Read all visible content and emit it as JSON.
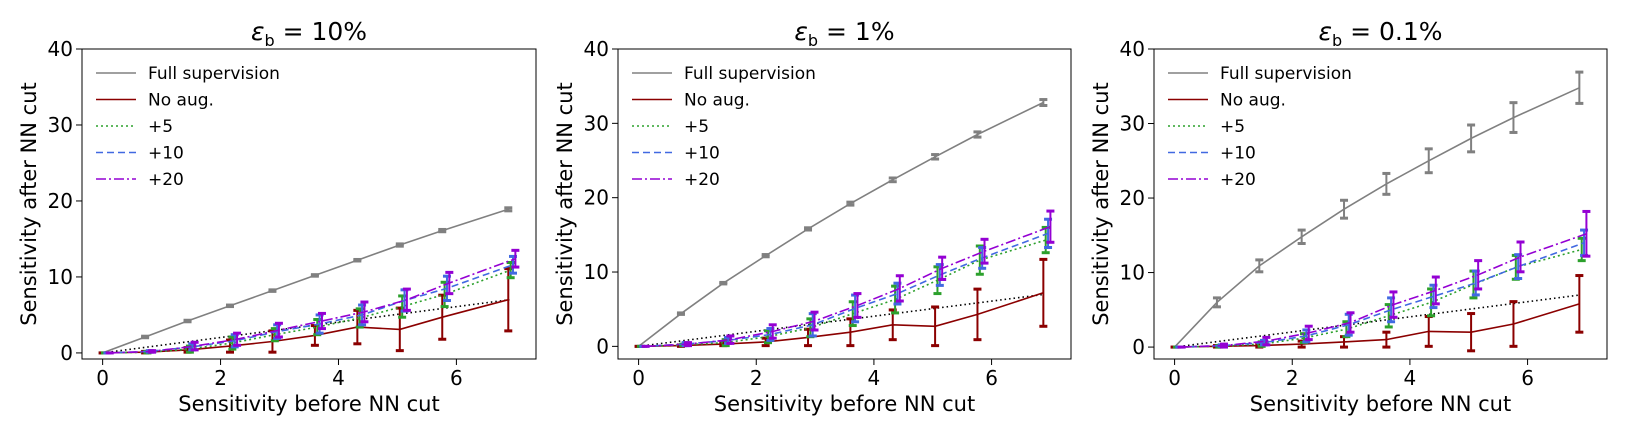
{
  "chart_data": [
    {
      "type": "line",
      "title": "ε_b = 10%",
      "title_symbol": "ε",
      "title_subscript": "b",
      "title_value": "10%",
      "xlabel": "Sensitivity before NN cut",
      "ylabel": "Sensitivity after NN cut",
      "xlim": [
        -0.35,
        7.35
      ],
      "ylim": [
        -0.8,
        40
      ],
      "xticks": [
        0,
        2,
        4,
        6
      ],
      "yticks": [
        0,
        10,
        20,
        30,
        40
      ],
      "legend_position": "top-left",
      "reference_line": {
        "x": [
          0,
          6.9
        ],
        "y": [
          0,
          7.0
        ]
      },
      "series": [
        {
          "name": "Full supervision",
          "color": "#808080",
          "dash": "",
          "x": [
            0,
            0.72,
            1.44,
            2.16,
            2.88,
            3.6,
            4.32,
            5.04,
            5.76,
            6.88
          ],
          "y": [
            0,
            2.1,
            4.2,
            6.2,
            8.2,
            10.2,
            12.2,
            14.2,
            16.1,
            18.9
          ],
          "err": [
            0,
            0.1,
            0.1,
            0.1,
            0.1,
            0.1,
            0.1,
            0.15,
            0.15,
            0.2
          ]
        },
        {
          "name": "No aug.",
          "color": "#8b0000",
          "dash": "",
          "x": [
            0,
            0.72,
            1.44,
            2.16,
            2.88,
            3.6,
            4.32,
            5.04,
            5.76,
            6.88
          ],
          "y": [
            0,
            0.1,
            0.4,
            0.9,
            1.5,
            2.3,
            3.4,
            3.1,
            4.7,
            7.0
          ],
          "err": [
            0,
            0.1,
            0.3,
            0.8,
            1.4,
            1.3,
            2.2,
            2.8,
            2.9,
            4.1
          ]
        },
        {
          "name": "+5",
          "color": "#2ca02c",
          "dash": "2,3",
          "x": [
            0.04,
            0.76,
            1.48,
            2.2,
            2.92,
            3.64,
            4.36,
            5.08,
            5.8,
            6.92
          ],
          "y": [
            0,
            0.1,
            0.5,
            1.3,
            2.4,
            3.4,
            4.6,
            6.1,
            7.7,
            10.9
          ],
          "err": [
            0,
            0.1,
            0.4,
            0.8,
            0.8,
            1.0,
            1.2,
            1.4,
            1.6,
            1.0
          ]
        },
        {
          "name": "+10",
          "color": "#4169e1",
          "dash": "7,4",
          "x": [
            0.08,
            0.8,
            1.52,
            2.24,
            2.96,
            3.68,
            4.4,
            5.12,
            5.84,
            6.96
          ],
          "y": [
            0,
            0.2,
            0.8,
            1.6,
            2.8,
            3.8,
            5.0,
            6.9,
            8.5,
            11.6
          ],
          "err": [
            0,
            0.1,
            0.4,
            0.8,
            0.9,
            1.2,
            1.3,
            1.4,
            1.6,
            1.1
          ]
        },
        {
          "name": "+20",
          "color": "#9400d3",
          "dash": "10,3,2,3",
          "x": [
            0.12,
            0.84,
            1.56,
            2.28,
            2.99,
            3.72,
            4.44,
            5.16,
            5.88,
            7.0
          ],
          "y": [
            0,
            0.2,
            0.9,
            1.8,
            3.0,
            4.2,
            5.4,
            7.0,
            9.2,
            12.4
          ],
          "err": [
            0,
            0.1,
            0.5,
            0.8,
            0.9,
            1.0,
            1.3,
            1.4,
            1.4,
            1.1
          ]
        }
      ]
    },
    {
      "type": "line",
      "title": "ε_b = 1%",
      "title_symbol": "ε",
      "title_subscript": "b",
      "title_value": "1%",
      "xlabel": "Sensitivity before NN cut",
      "ylabel": "Sensitivity after NN cut",
      "xlim": [
        -0.35,
        7.35
      ],
      "ylim": [
        -1.7,
        40
      ],
      "xticks": [
        0,
        2,
        4,
        6
      ],
      "yticks": [
        0,
        10,
        20,
        30,
        40
      ],
      "legend_position": "top-left",
      "reference_line": {
        "x": [
          0,
          6.9
        ],
        "y": [
          0,
          7.0
        ]
      },
      "series": [
        {
          "name": "Full supervision",
          "color": "#808080",
          "dash": "",
          "x": [
            0,
            0.72,
            1.44,
            2.16,
            2.88,
            3.6,
            4.32,
            5.04,
            5.76,
            6.88
          ],
          "y": [
            0,
            4.4,
            8.5,
            12.2,
            15.8,
            19.2,
            22.4,
            25.5,
            28.5,
            32.8
          ],
          "err": [
            0,
            0.1,
            0.1,
            0.15,
            0.15,
            0.2,
            0.25,
            0.3,
            0.35,
            0.4
          ]
        },
        {
          "name": "No aug.",
          "color": "#8b0000",
          "dash": "",
          "x": [
            0,
            0.72,
            1.44,
            2.16,
            2.88,
            3.6,
            4.32,
            5.04,
            5.76,
            6.88
          ],
          "y": [
            0,
            0.1,
            0.3,
            0.6,
            1.2,
            1.9,
            2.9,
            2.7,
            4.3,
            7.2
          ],
          "err": [
            0,
            0.1,
            0.2,
            0.5,
            1.1,
            1.8,
            2.0,
            2.6,
            3.4,
            4.5
          ]
        },
        {
          "name": "+5",
          "color": "#2ca02c",
          "dash": "2,3",
          "x": [
            0.04,
            0.76,
            1.48,
            2.2,
            2.92,
            3.64,
            4.36,
            5.08,
            5.8,
            6.92
          ],
          "y": [
            0,
            0.2,
            0.5,
            1.3,
            2.5,
            4.4,
            6.3,
            8.9,
            11.6,
            14.3
          ],
          "err": [
            0,
            0.1,
            0.4,
            0.8,
            1.2,
            1.6,
            1.8,
            1.8,
            1.9,
            1.7
          ]
        },
        {
          "name": "+10",
          "color": "#4169e1",
          "dash": "7,4",
          "x": [
            0.08,
            0.8,
            1.52,
            2.24,
            2.96,
            3.68,
            4.4,
            5.12,
            5.84,
            6.96
          ],
          "y": [
            0,
            0.3,
            0.8,
            1.6,
            2.9,
            5.1,
            7.1,
            9.6,
            11.9,
            15.2
          ],
          "err": [
            0,
            0.2,
            0.4,
            0.8,
            1.5,
            1.8,
            1.4,
            1.4,
            1.4,
            1.9
          ]
        },
        {
          "name": "+20",
          "color": "#9400d3",
          "dash": "10,3,2,3",
          "x": [
            0.12,
            0.84,
            1.56,
            2.28,
            2.99,
            3.72,
            4.44,
            5.16,
            5.88,
            7.0
          ],
          "y": [
            0,
            0.3,
            0.9,
            2.0,
            3.4,
            5.5,
            7.8,
            10.5,
            12.8,
            16.1
          ],
          "err": [
            0,
            0.2,
            0.5,
            0.9,
            1.2,
            1.6,
            1.7,
            1.5,
            1.6,
            2.1
          ]
        }
      ]
    },
    {
      "type": "line",
      "title": "ε_b = 0.1%",
      "title_symbol": "ε",
      "title_subscript": "b",
      "title_value": "0.1%",
      "xlabel": "Sensitivity before NN cut",
      "ylabel": "Sensitivity after NN cut",
      "xlim": [
        -0.35,
        7.35
      ],
      "ylim": [
        -1.6,
        40
      ],
      "xticks": [
        0,
        2,
        4,
        6
      ],
      "yticks": [
        0,
        10,
        20,
        30,
        40
      ],
      "legend_position": "top-left",
      "reference_line": {
        "x": [
          0,
          6.9
        ],
        "y": [
          0,
          7.0
        ]
      },
      "series": [
        {
          "name": "Full supervision",
          "color": "#808080",
          "dash": "",
          "x": [
            0,
            0.72,
            1.44,
            2.16,
            2.88,
            3.6,
            4.32,
            5.04,
            5.76,
            6.88
          ],
          "y": [
            0,
            6.0,
            10.9,
            14.8,
            18.5,
            21.9,
            25.0,
            28.0,
            30.8,
            34.8
          ],
          "err": [
            0,
            0.6,
            0.8,
            0.9,
            1.2,
            1.4,
            1.6,
            1.8,
            2.0,
            2.1
          ]
        },
        {
          "name": "No aug.",
          "color": "#8b0000",
          "dash": "",
          "x": [
            0,
            0.72,
            1.44,
            2.16,
            2.88,
            3.6,
            4.32,
            5.04,
            5.76,
            6.88
          ],
          "y": [
            0,
            0.1,
            0.2,
            0.4,
            0.7,
            1.0,
            2.1,
            2.0,
            3.1,
            5.8
          ],
          "err": [
            0,
            0.1,
            0.2,
            0.4,
            0.7,
            1.0,
            2.0,
            2.5,
            3.0,
            3.8
          ]
        },
        {
          "name": "+5",
          "color": "#2ca02c",
          "dash": "2,3",
          "x": [
            0.04,
            0.76,
            1.48,
            2.2,
            2.92,
            3.64,
            4.36,
            5.08,
            5.8,
            6.92
          ],
          "y": [
            0,
            0.1,
            0.4,
            1.2,
            2.4,
            4.2,
            6.0,
            8.4,
            10.7,
            13.1
          ],
          "err": [
            0,
            0.1,
            0.3,
            0.6,
            1.0,
            1.5,
            1.8,
            1.8,
            1.6,
            1.5
          ]
        },
        {
          "name": "+10",
          "color": "#4169e1",
          "dash": "7,4",
          "x": [
            0.08,
            0.8,
            1.52,
            2.24,
            2.96,
            3.68,
            4.4,
            5.12,
            5.84,
            6.96
          ],
          "y": [
            0,
            0.2,
            0.6,
            1.5,
            3.0,
            5.0,
            6.8,
            8.6,
            10.8,
            14.0
          ],
          "err": [
            0,
            0.1,
            0.3,
            0.8,
            1.4,
            1.6,
            1.5,
            1.6,
            1.6,
            1.7
          ]
        },
        {
          "name": "+20",
          "color": "#9400d3",
          "dash": "10,3,2,3",
          "x": [
            0.12,
            0.84,
            1.56,
            2.28,
            2.99,
            3.72,
            4.44,
            5.16,
            5.88,
            7.0
          ],
          "y": [
            0,
            0.2,
            0.8,
            1.9,
            3.3,
            5.7,
            7.6,
            9.7,
            12.1,
            15.2
          ],
          "err": [
            0,
            0.2,
            0.5,
            0.9,
            1.3,
            1.7,
            1.8,
            1.9,
            2.0,
            3.0
          ]
        }
      ]
    }
  ]
}
